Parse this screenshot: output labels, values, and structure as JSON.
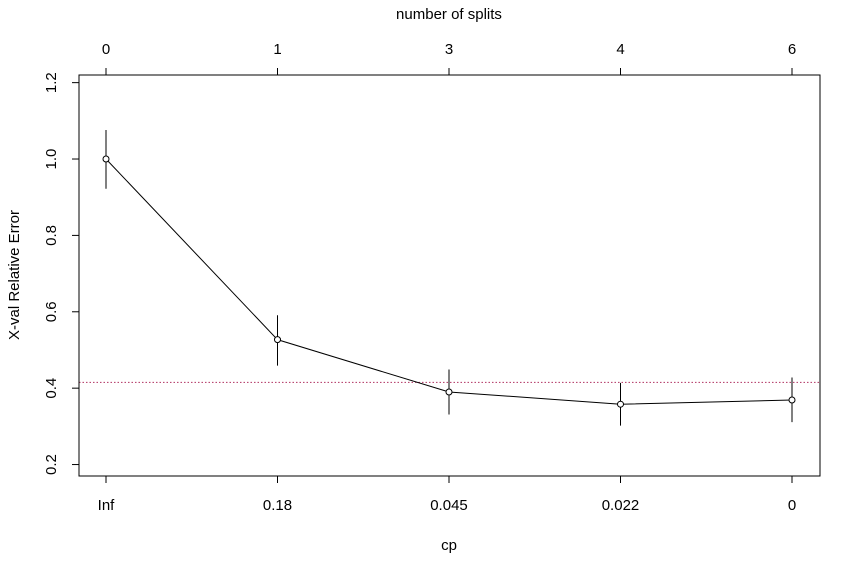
{
  "chart_data": {
    "type": "line",
    "title": "",
    "xlabel": "cp",
    "ylabel": "X-val Relative Error",
    "top_axis_label": "number of splits",
    "categories": [
      "Inf",
      "0.18",
      "0.045",
      "0.022",
      "0"
    ],
    "top_categories": [
      "0",
      "1",
      "3",
      "4",
      "6"
    ],
    "series": [
      {
        "values": [
          1.0,
          0.527,
          0.39,
          0.358,
          0.369
        ],
        "error_lower": [
          0.922,
          0.459,
          0.331,
          0.302,
          0.311
        ],
        "error_upper": [
          1.076,
          0.591,
          0.449,
          0.414,
          0.428
        ]
      }
    ],
    "reference_line": {
      "y": 0.415,
      "color": "#b03060",
      "style": "dotted"
    },
    "yticks": [
      "0.2",
      "0.4",
      "0.6",
      "0.8",
      "1.0",
      "1.2"
    ],
    "ytick_values": [
      0.2,
      0.4,
      0.6,
      0.8,
      1.0,
      1.2
    ],
    "ylim": [
      0.17,
      1.22
    ],
    "grid": false,
    "colors": {
      "line": "#000000",
      "reference": "#b03060"
    }
  }
}
